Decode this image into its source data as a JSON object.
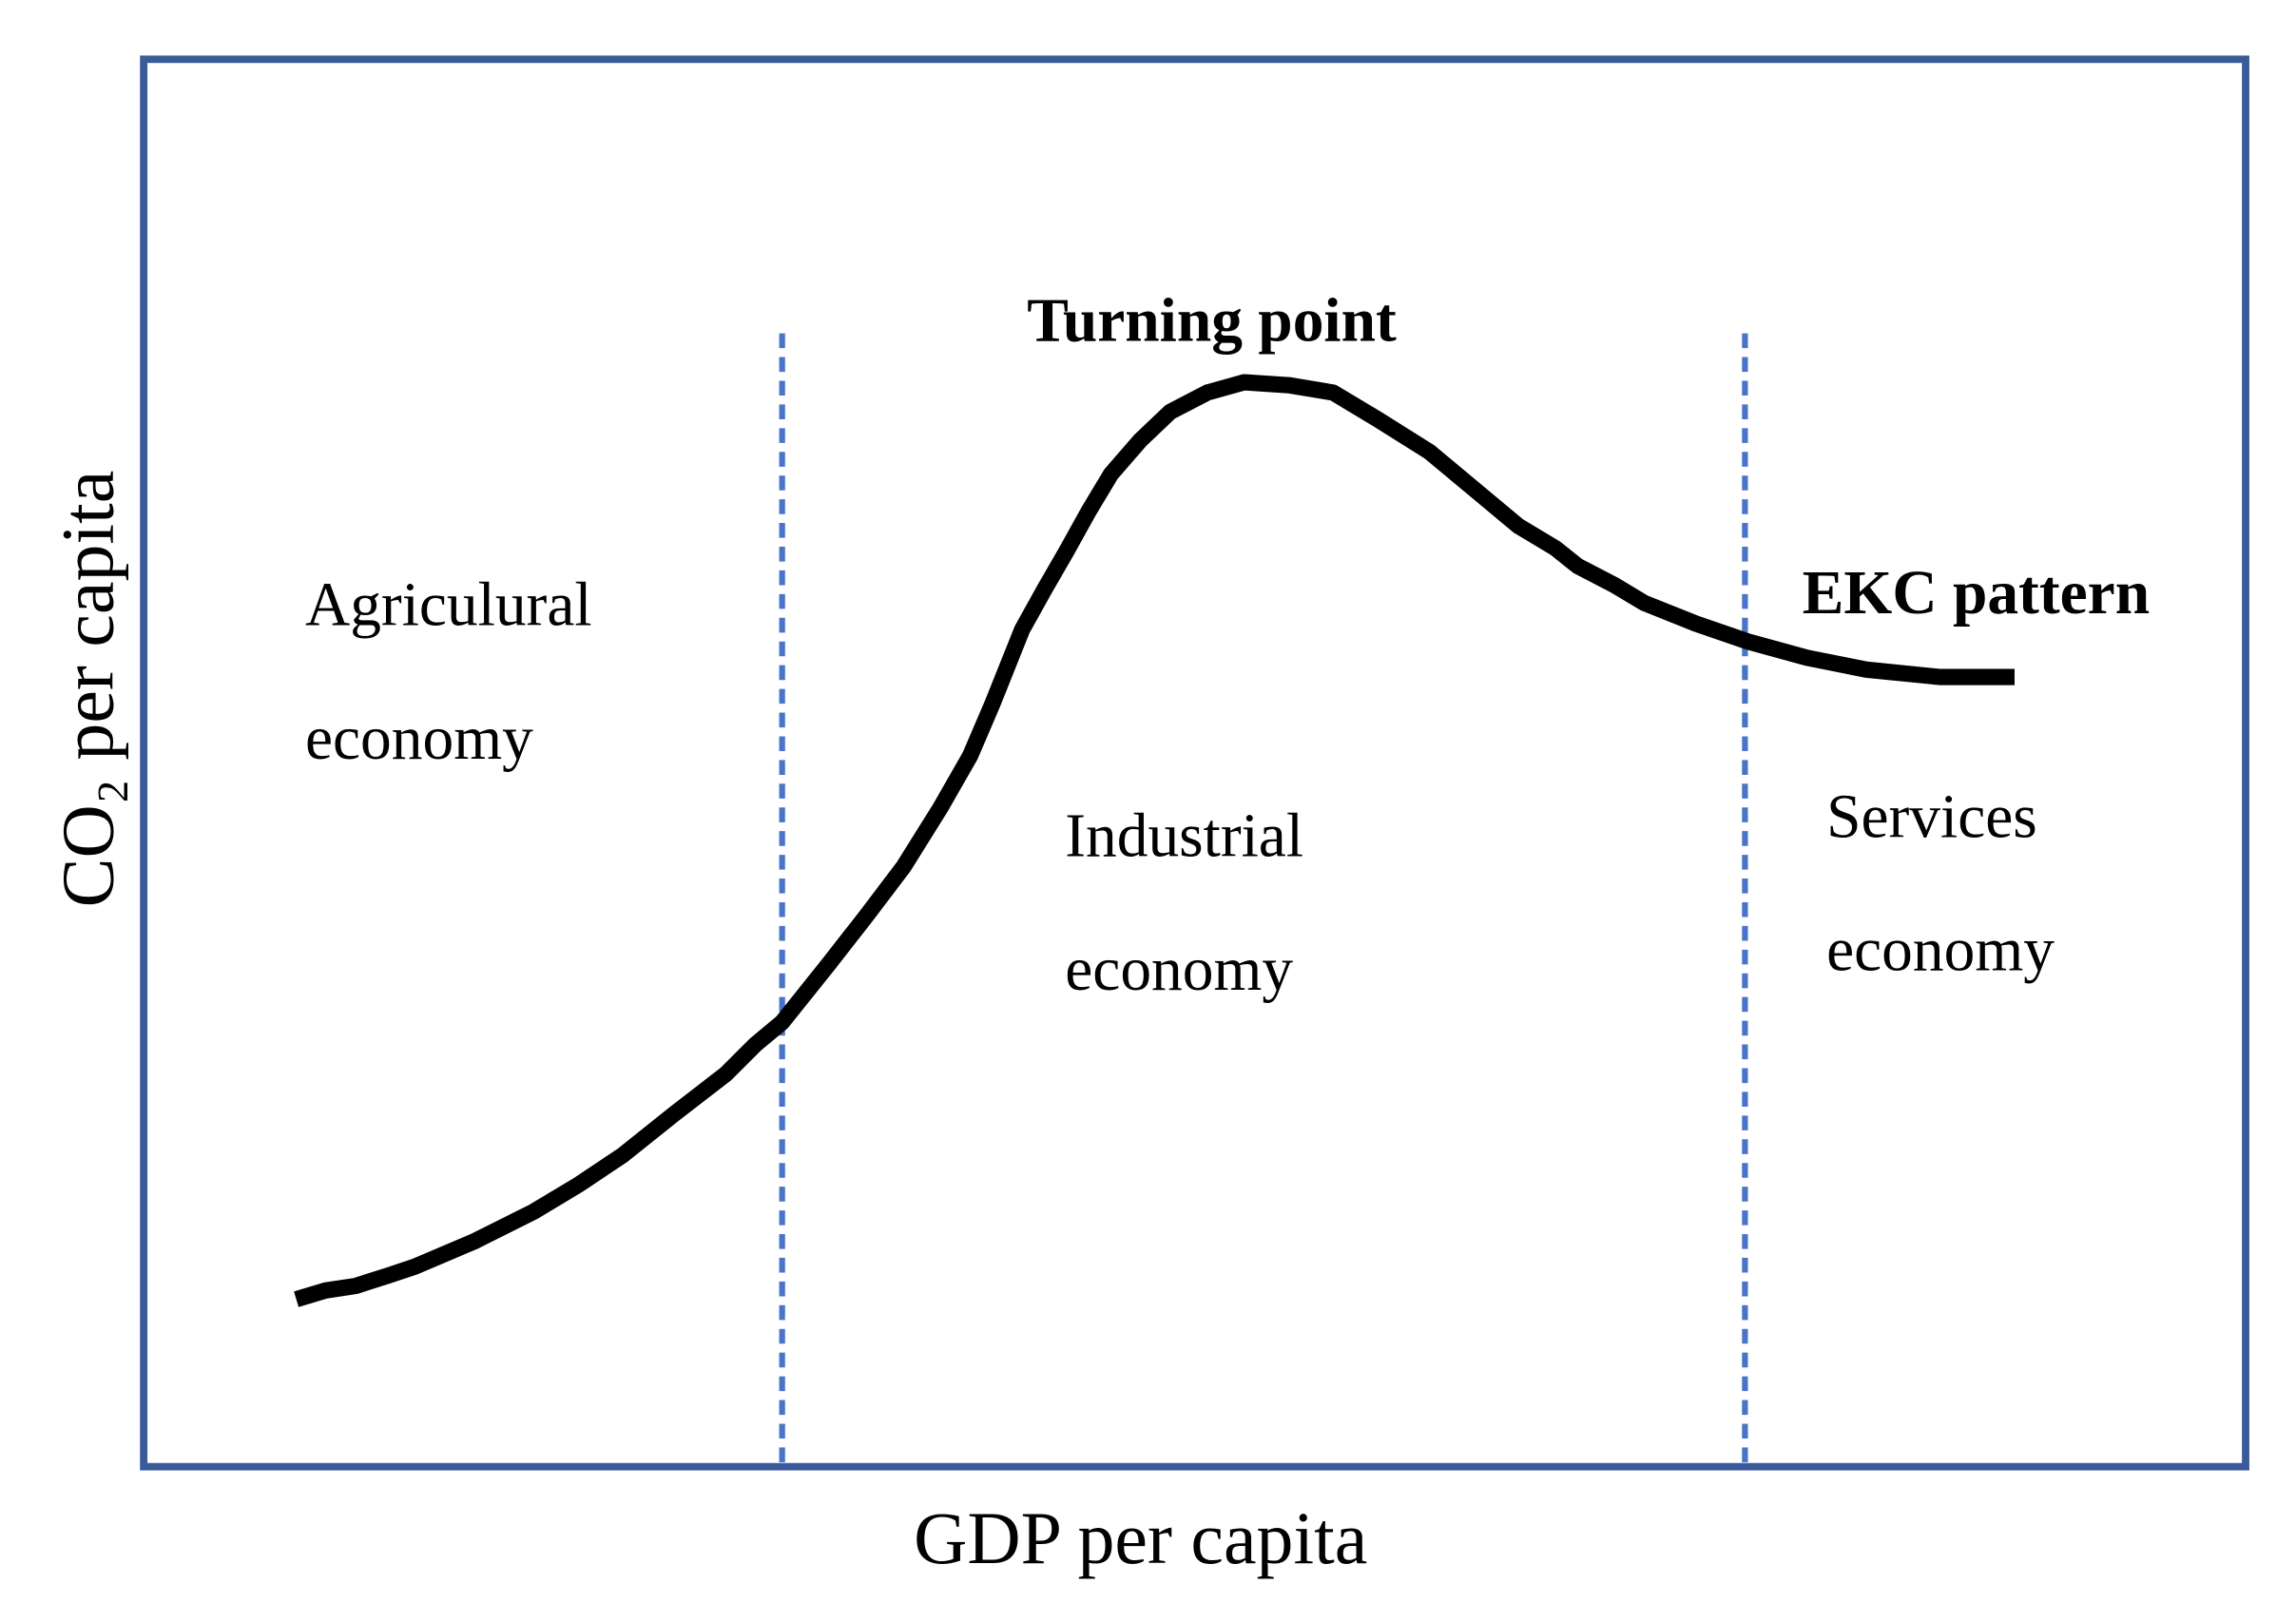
{
  "axes": {
    "x_label": "GDP per capita",
    "y_label": "CO₂ per capita"
  },
  "callouts": {
    "turning_point": "Turning point",
    "pattern": "EKC pattern"
  },
  "regions": [
    {
      "lines": [
        "Agriculural",
        "economy"
      ]
    },
    {
      "lines": [
        "Industrial",
        "economy"
      ]
    },
    {
      "lines": [
        "Services",
        "economy"
      ]
    }
  ]
}
